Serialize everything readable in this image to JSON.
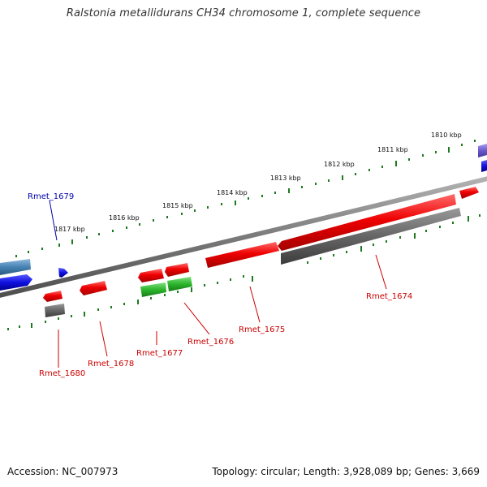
{
  "title": "Ralstonia metallidurans CH34 chromosome 1, complete sequence",
  "footer": {
    "accession_label": "Accession:",
    "accession": "NC_007973",
    "topology_label": "Topology:",
    "topology": "circular",
    "length_label": "Length:",
    "length": "3,928,089 bp",
    "genes_label": "Genes:",
    "genes": "3,669"
  },
  "colors": {
    "backbone": "#808080",
    "tick": "#1f7a1f",
    "gene_red": "#e00000",
    "gene_grey": "#666666",
    "gene_green": "#2bb52b",
    "gene_blue": "#1010e0",
    "gene_steelblue": "#4682b4",
    "gene_purple": "#6a5acd",
    "label_red": "#cc0000",
    "label_blue": "#0000aa"
  },
  "scale_labels": [
    "1810 kbp",
    "1811 kbp",
    "1812 kbp",
    "1813 kbp",
    "1814 kbp",
    "1815 kbp",
    "1816 kbp",
    "1817 kbp"
  ],
  "gene_labels": [
    {
      "id": "Rmet_1679",
      "color": "blue"
    },
    {
      "id": "Rmet_1680",
      "color": "red"
    },
    {
      "id": "Rmet_1678",
      "color": "red"
    },
    {
      "id": "Rmet_1677",
      "color": "red"
    },
    {
      "id": "Rmet_1676",
      "color": "red"
    },
    {
      "id": "Rmet_1675",
      "color": "red"
    },
    {
      "id": "Rmet_1674",
      "color": "red"
    }
  ],
  "icons": [
    "cds-arrow-icon"
  ]
}
